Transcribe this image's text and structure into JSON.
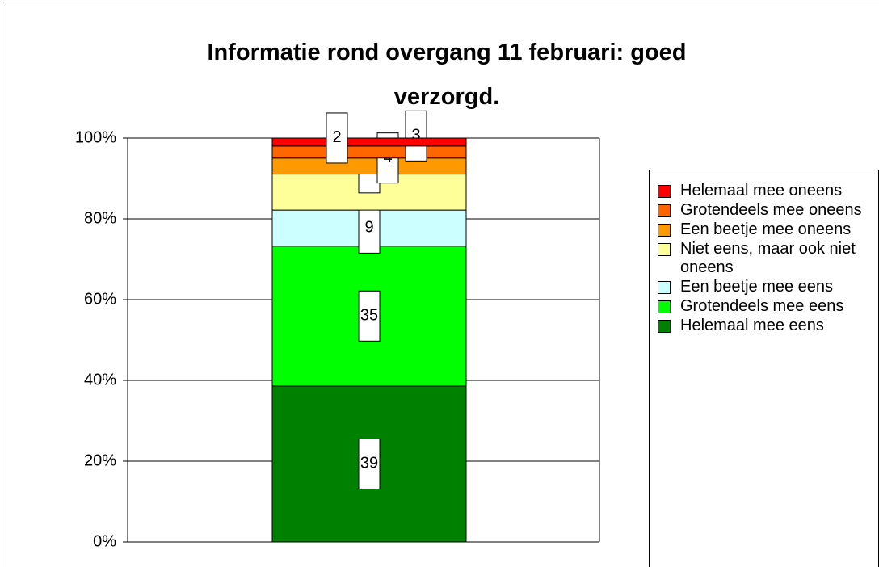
{
  "chart_data": {
    "type": "bar",
    "percent_stacked": true,
    "title": "Informatie rond overgang 11 februari: goed verzorgd.",
    "series": [
      {
        "name": "Helemaal mee eens",
        "color": "#008000",
        "values": [
          39
        ]
      },
      {
        "name": "Grotendeels mee eens",
        "color": "#00ff00",
        "values": [
          35
        ]
      },
      {
        "name": "Een beetje mee eens",
        "color": "#ccffff",
        "values": [
          9
        ]
      },
      {
        "name": "Niet eens, maar ook niet oneens",
        "color": "#ffff99",
        "values": [
          9
        ]
      },
      {
        "name": "Een beetje mee oneens",
        "color": "#ff9900",
        "values": [
          4
        ]
      },
      {
        "name": "Grotendeels mee oneens",
        "color": "#ff6600",
        "values": [
          3
        ]
      },
      {
        "name": "Helemaal mee oneens",
        "color": "#ff0000",
        "values": [
          2
        ]
      }
    ],
    "ylim": [
      0,
      100
    ],
    "yticks": [
      {
        "value": 0,
        "label": "0%"
      },
      {
        "value": 20,
        "label": "20%"
      },
      {
        "value": 40,
        "label": "40%"
      },
      {
        "value": 60,
        "label": "60%"
      },
      {
        "value": 80,
        "label": "80%"
      },
      {
        "value": 100,
        "label": "100%"
      }
    ],
    "grid": true,
    "legend": "right"
  }
}
